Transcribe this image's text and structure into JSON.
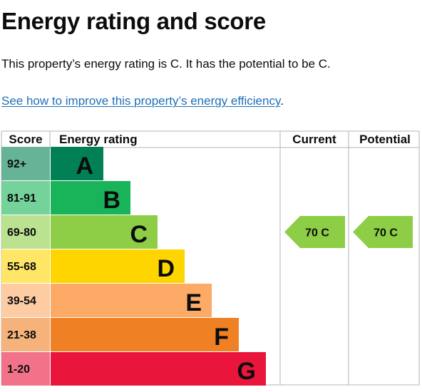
{
  "page": {
    "title": "Energy rating and score",
    "summary": "This property’s energy rating is C. It has the potential to be C.",
    "improve_link": "See how to improve this property’s energy efficiency",
    "improve_suffix": "."
  },
  "chart_data": {
    "type": "table",
    "headers": {
      "score": "Score",
      "rating": "Energy rating",
      "current": "Current",
      "potential": "Potential"
    },
    "bands": [
      {
        "score": "92+",
        "letter": "A",
        "color": "#008054",
        "score_bg": "#66b398"
      },
      {
        "score": "81-91",
        "letter": "B",
        "color": "#19b459",
        "score_bg": "#75d29b"
      },
      {
        "score": "69-80",
        "letter": "C",
        "color": "#8dce46",
        "score_bg": "#bbe290"
      },
      {
        "score": "55-68",
        "letter": "D",
        "color": "#ffd500",
        "score_bg": "#ffe666"
      },
      {
        "score": "39-54",
        "letter": "E",
        "color": "#fcaa65",
        "score_bg": "#fdcca3"
      },
      {
        "score": "21-38",
        "letter": "F",
        "color": "#ef8023",
        "score_bg": "#f5b37b"
      },
      {
        "score": "1-20",
        "letter": "G",
        "color": "#e9153b",
        "score_bg": "#f27389"
      }
    ],
    "current": {
      "score": 70,
      "band": "C",
      "label": "70  C",
      "color": "#8dce46"
    },
    "potential": {
      "score": 70,
      "band": "C",
      "label": "70  C",
      "color": "#8dce46"
    }
  }
}
